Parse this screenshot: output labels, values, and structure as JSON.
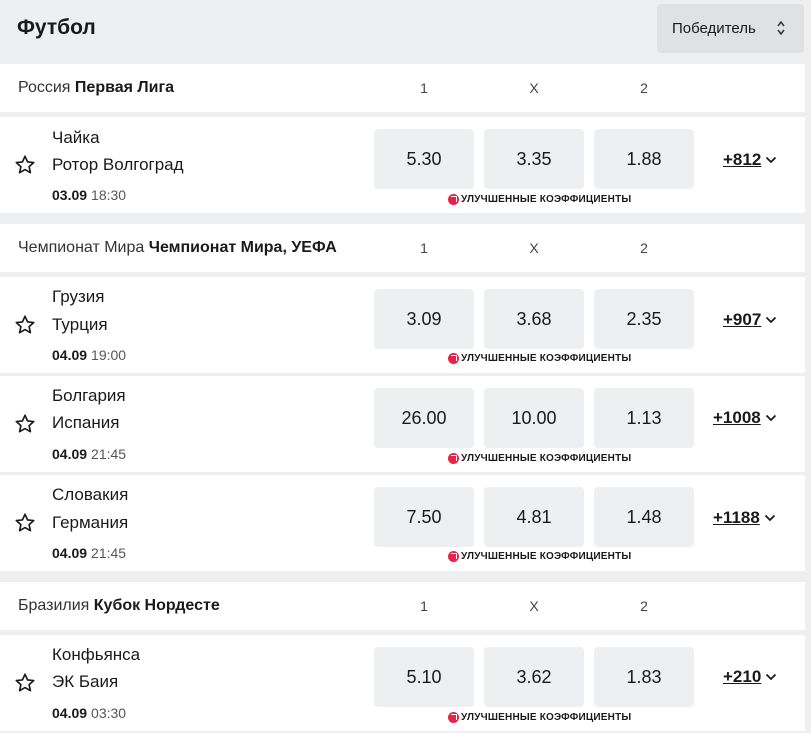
{
  "page": {
    "title": "Футбол"
  },
  "sort": {
    "label": "Победитель"
  },
  "boost_label": "УЛУЧШЕННЫЕ КОЭФФИЦИЕНТЫ",
  "accent_color": "#e8234a",
  "leagues": [
    {
      "country": "Россия",
      "tournament": "Первая Лига",
      "cols": [
        "1",
        "X",
        "2"
      ],
      "matches": [
        {
          "home": "Чайка",
          "away": "Ротор Волгоград",
          "date": "03.09",
          "time": "18:30",
          "odds": [
            "5.30",
            "3.35",
            "1.88"
          ],
          "more": "+812"
        }
      ]
    },
    {
      "country": "Чемпионат Мира",
      "tournament": "Чемпионат Мира, УЕФА",
      "cols": [
        "1",
        "X",
        "2"
      ],
      "matches": [
        {
          "home": "Грузия",
          "away": "Турция",
          "date": "04.09",
          "time": "19:00",
          "odds": [
            "3.09",
            "3.68",
            "2.35"
          ],
          "more": "+907"
        },
        {
          "home": "Болгария",
          "away": "Испания",
          "date": "04.09",
          "time": "21:45",
          "odds": [
            "26.00",
            "10.00",
            "1.13"
          ],
          "more": "+1008"
        },
        {
          "home": "Словакия",
          "away": "Германия",
          "date": "04.09",
          "time": "21:45",
          "odds": [
            "7.50",
            "4.81",
            "1.48"
          ],
          "more": "+1188"
        }
      ]
    },
    {
      "country": "Бразилия",
      "tournament": "Кубок Нордесте",
      "cols": [
        "1",
        "X",
        "2"
      ],
      "matches": [
        {
          "home": "Конфьянса",
          "away": "ЭК Баия",
          "date": "04.09",
          "time": "03:30",
          "odds": [
            "5.10",
            "3.62",
            "1.83"
          ],
          "more": "+210"
        }
      ]
    }
  ]
}
